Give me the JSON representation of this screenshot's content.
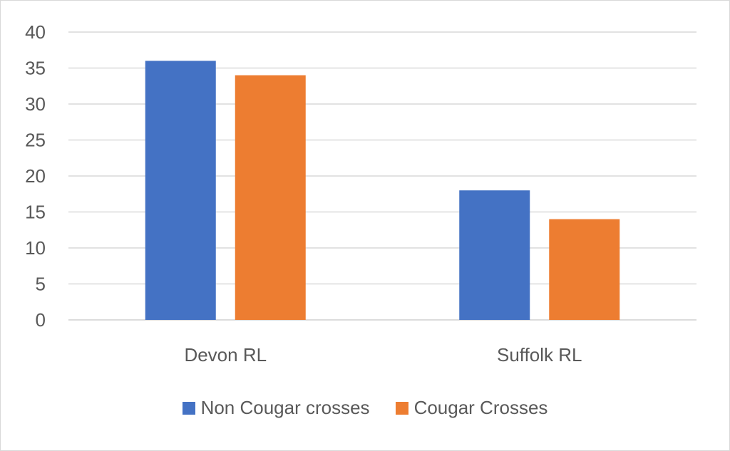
{
  "chart_data": {
    "type": "bar",
    "title": "",
    "xlabel": "",
    "ylabel": "",
    "categories": [
      "Devon RL",
      "Suffolk RL"
    ],
    "series": [
      {
        "name": "Non Cougar crosses",
        "values": [
          36,
          18
        ],
        "color": "#4472C4"
      },
      {
        "name": "Cougar Crosses",
        "values": [
          34,
          14
        ],
        "color": "#ED7D31"
      }
    ],
    "ylim": [
      0,
      40
    ],
    "yticks": [
      0,
      5,
      10,
      15,
      20,
      25,
      30,
      35,
      40
    ],
    "grid": true,
    "legend_position": "bottom"
  }
}
